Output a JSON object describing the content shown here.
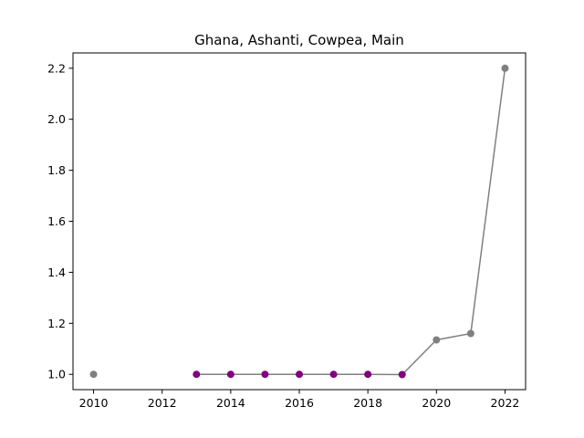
{
  "chart_data": {
    "type": "line",
    "title": "Ghana, Ashanti, Cowpea, Main",
    "xlabel": "",
    "ylabel": "",
    "xlim": [
      2009.4,
      2022.6
    ],
    "ylim": [
      0.94,
      2.26
    ],
    "x_ticks": [
      2010,
      2012,
      2014,
      2016,
      2018,
      2020,
      2022
    ],
    "y_ticks": [
      1.0,
      1.2,
      1.4,
      1.6,
      1.8,
      2.0,
      2.2
    ],
    "y_tick_labels": [
      "1.0",
      "1.2",
      "1.4",
      "1.6",
      "1.8",
      "2.0",
      "2.2"
    ],
    "grid": false,
    "legend": "none",
    "series": [
      {
        "color": "#808080",
        "x": [
          2010,
          2013,
          2014,
          2015,
          2016,
          2017,
          2018,
          2019,
          2020,
          2021,
          2022
        ],
        "y": [
          1.0,
          1.0,
          1.0,
          1.0,
          1.0,
          1.0,
          1.0,
          0.999,
          1.135,
          1.16,
          2.2
        ],
        "line_segments": [
          [
            2013,
            2022
          ]
        ],
        "marker_colors": [
          "#808080",
          "#800080",
          "#800080",
          "#800080",
          "#800080",
          "#800080",
          "#800080",
          "#800080",
          "#808080",
          "#808080",
          "#808080"
        ]
      }
    ]
  }
}
